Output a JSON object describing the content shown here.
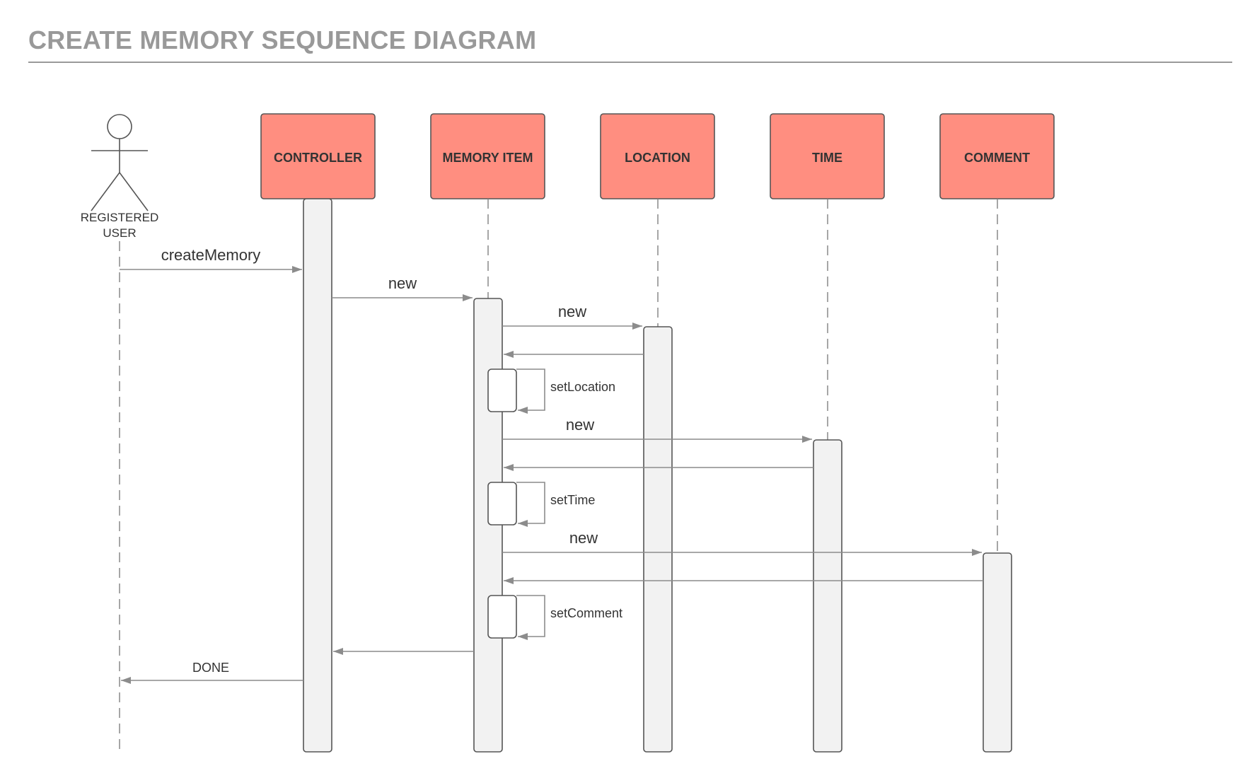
{
  "title": "CREATE MEMORY SEQUENCE DIAGRAM",
  "actor": {
    "label_line1": "REGISTERED",
    "label_line2": "USER"
  },
  "participants": [
    "CONTROLLER",
    "MEMORY ITEM",
    "LOCATION",
    "TIME",
    "COMMENT"
  ],
  "messages": {
    "create_memory": "createMemory",
    "new_memory_item": "new",
    "new_location": "new",
    "set_location": "setLocation",
    "new_time": "new",
    "set_time": "setTime",
    "new_comment": "new",
    "set_comment": "setComment",
    "done": "DONE"
  },
  "colors": {
    "participant_fill": "#ff8e80",
    "activation_fill": "#f2f2f2",
    "line": "#8c8c8c",
    "title": "#999999"
  }
}
